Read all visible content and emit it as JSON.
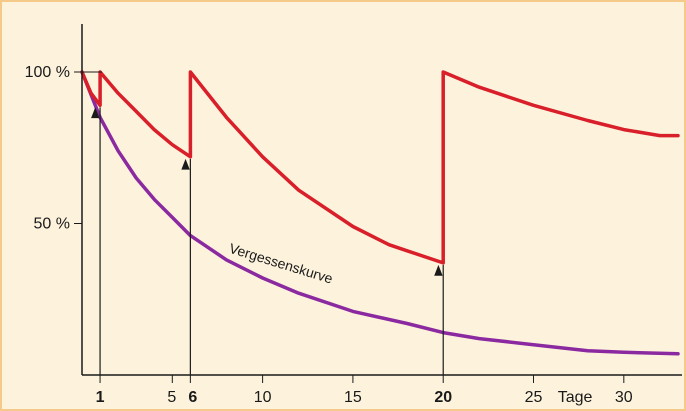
{
  "chart_data": {
    "type": "line",
    "xlim": [
      0,
      33
    ],
    "ylim": [
      0,
      100
    ],
    "y_ticks": [
      {
        "value": 100,
        "label": "100 %"
      },
      {
        "value": 50,
        "label": "50 %"
      }
    ],
    "x_ticks": [
      {
        "value": 1,
        "label": "1",
        "bold": true
      },
      {
        "value": 5,
        "label": "5",
        "bold": false
      },
      {
        "value": 6,
        "label": "6",
        "bold": true
      },
      {
        "value": 10,
        "label": "10",
        "bold": false
      },
      {
        "value": 15,
        "label": "15",
        "bold": false
      },
      {
        "value": 20,
        "label": "20",
        "bold": true
      },
      {
        "value": 25,
        "label": "25",
        "bold": false
      },
      {
        "value": 30,
        "label": "30",
        "bold": false
      }
    ],
    "x_unit_label": "Tage",
    "review_days": [
      1,
      6,
      20
    ],
    "colors": {
      "background": "#fdf3dd",
      "border": "#f5c98a",
      "retention": "#d81f2a",
      "forgetting": "#8b2aa0",
      "axis": "#1a1a1a"
    },
    "series": [
      {
        "name": "Vergessenskurve",
        "points": [
          [
            0,
            100
          ],
          [
            1,
            85
          ],
          [
            2,
            74
          ],
          [
            3,
            65
          ],
          [
            4,
            58
          ],
          [
            5,
            52
          ],
          [
            6,
            46
          ],
          [
            8,
            38
          ],
          [
            10,
            32
          ],
          [
            12,
            27
          ],
          [
            15,
            21
          ],
          [
            18,
            17
          ],
          [
            20,
            14
          ],
          [
            22,
            12
          ],
          [
            25,
            10
          ],
          [
            28,
            8
          ],
          [
            30,
            7.5
          ],
          [
            33,
            7
          ]
        ]
      },
      {
        "points": [
          [
            0,
            100
          ],
          [
            0.5,
            93
          ],
          [
            1,
            89
          ],
          [
            1,
            100
          ],
          [
            2,
            93
          ],
          [
            3,
            87
          ],
          [
            4,
            81
          ],
          [
            5,
            76
          ],
          [
            6,
            72
          ],
          [
            6,
            100
          ],
          [
            8,
            85
          ],
          [
            10,
            72
          ],
          [
            12,
            61
          ],
          [
            15,
            49
          ],
          [
            17,
            43
          ],
          [
            18,
            41
          ],
          [
            20,
            37
          ],
          [
            20,
            100
          ],
          [
            22,
            95
          ],
          [
            25,
            89
          ],
          [
            28,
            84
          ],
          [
            30,
            81
          ],
          [
            32,
            79
          ],
          [
            33,
            79
          ]
        ]
      }
    ]
  }
}
